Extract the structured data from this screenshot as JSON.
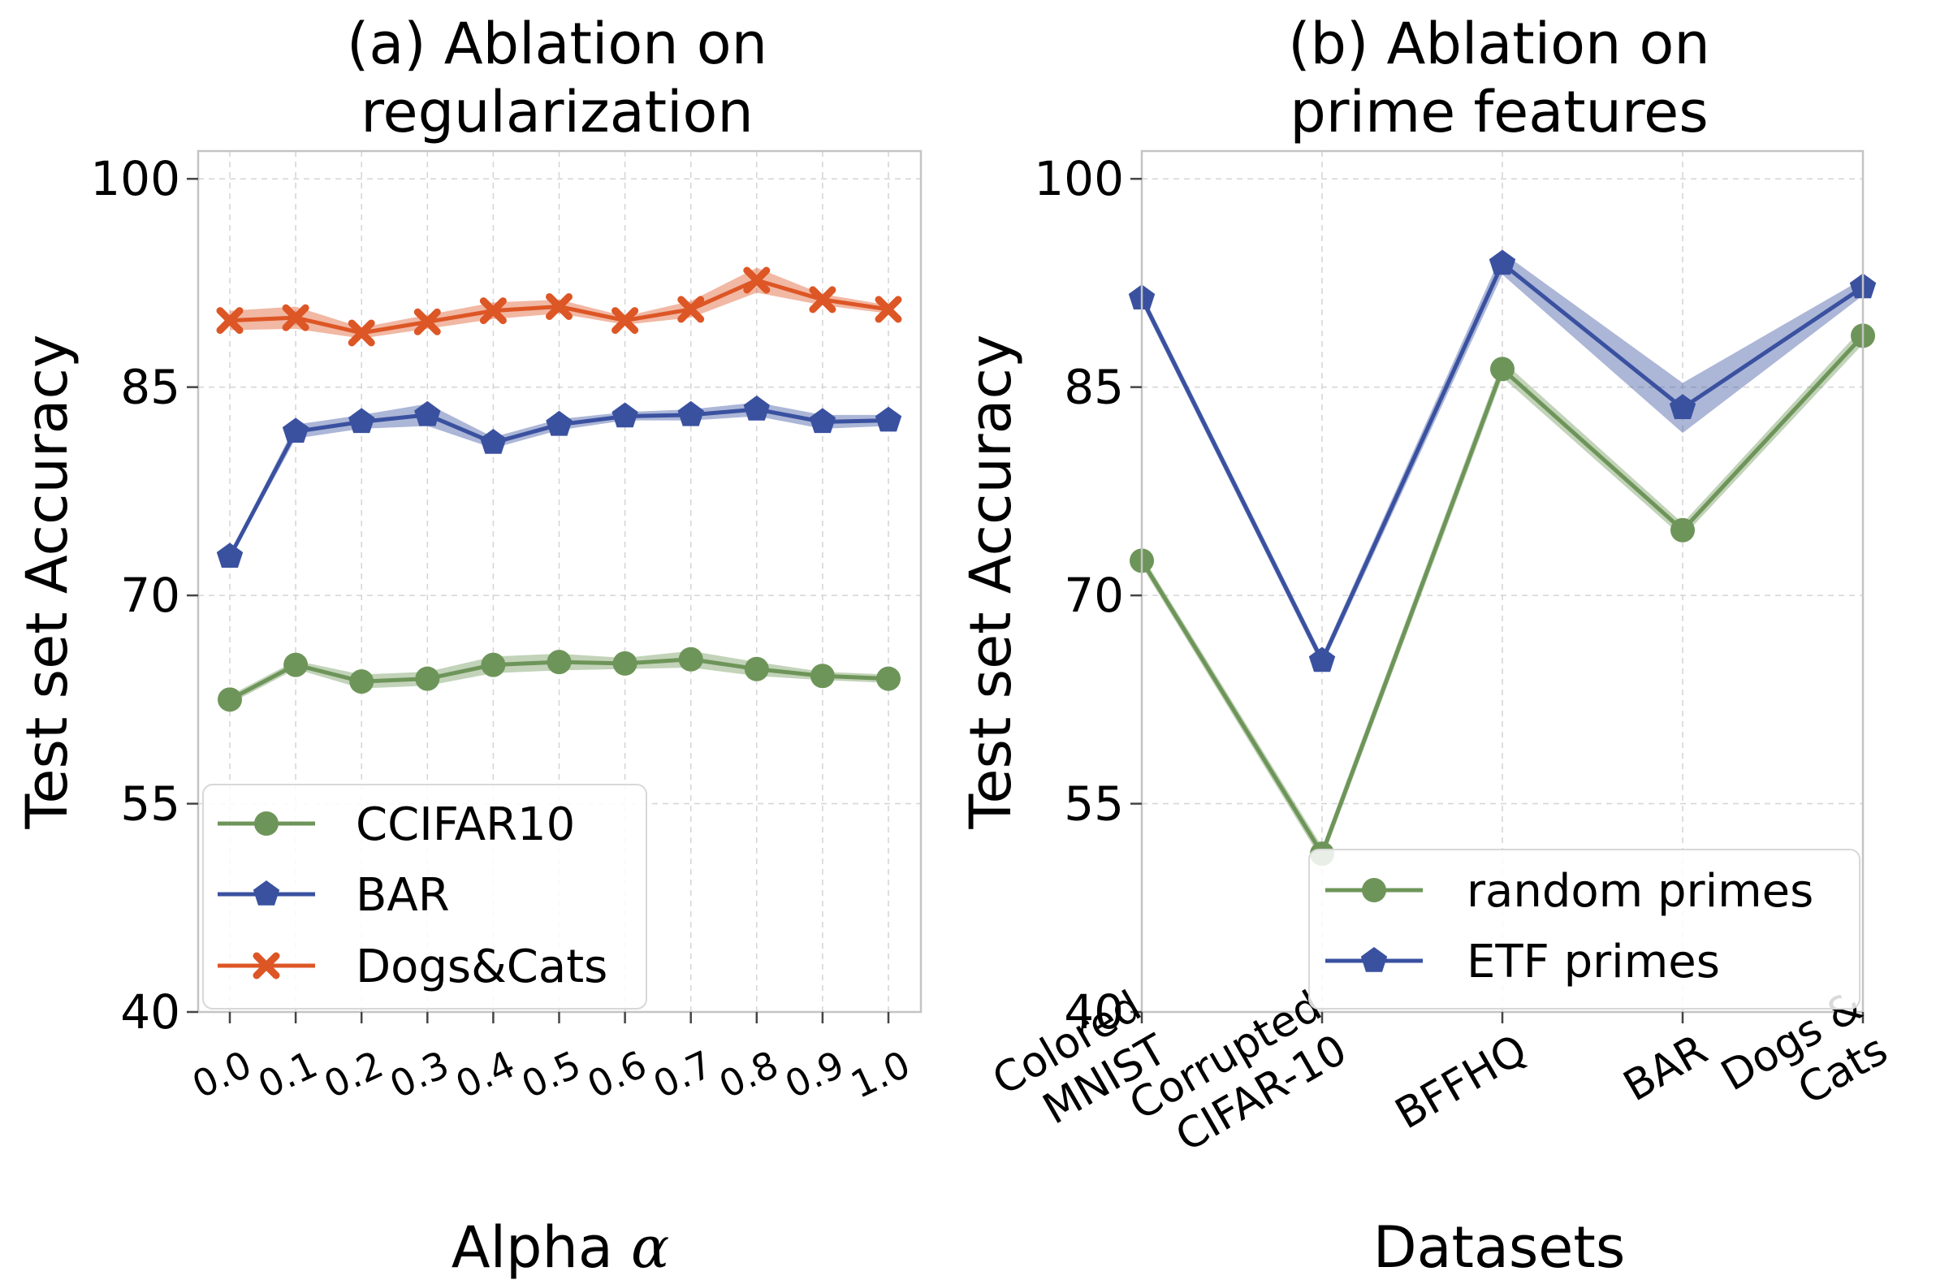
{
  "colors": {
    "green": "#6e9559",
    "blue": "#3a51a0",
    "orange": "#dd5625"
  },
  "chart_data": [
    {
      "type": "line",
      "title_lines": [
        "(a) Ablation on",
        "regularization"
      ],
      "xlabel": "Alpha",
      "xlabel_symbol": "α",
      "ylabel": "Test set Accuracy",
      "x": [
        "0.0",
        "0.1",
        "0.2",
        "0.3",
        "0.4",
        "0.5",
        "0.6",
        "0.7",
        "0.8",
        "0.9",
        "1.0"
      ],
      "yticks": [
        "40",
        "55",
        "70",
        "85",
        "100"
      ],
      "ytick_values": [
        40,
        55,
        70,
        85,
        100
      ],
      "ylim": [
        40,
        102
      ],
      "grid": true,
      "legend_position": "lower-left",
      "series": [
        {
          "name": "CCIFAR10",
          "color": "green",
          "marker": "circle",
          "values": [
            62.5,
            65.0,
            63.8,
            64.0,
            65.0,
            65.2,
            65.1,
            65.4,
            64.7,
            64.2,
            64.0
          ],
          "spread": [
            0.3,
            0.3,
            0.5,
            0.5,
            0.6,
            0.6,
            0.4,
            0.6,
            0.5,
            0.3,
            0.3
          ]
        },
        {
          "name": "BAR",
          "color": "blue",
          "marker": "pentagon",
          "values": [
            72.8,
            81.8,
            82.5,
            83.0,
            81.0,
            82.3,
            82.9,
            83.0,
            83.4,
            82.5,
            82.6
          ],
          "spread": [
            0.2,
            0.5,
            0.5,
            0.8,
            0.4,
            0.4,
            0.3,
            0.4,
            0.5,
            0.5,
            0.4
          ]
        },
        {
          "name": "Dogs&Cats",
          "color": "orange",
          "marker": "x",
          "values": [
            89.8,
            90.0,
            88.9,
            89.7,
            90.5,
            90.8,
            89.8,
            90.6,
            92.7,
            91.3,
            90.6
          ],
          "spread": [
            0.7,
            0.8,
            0.4,
            0.5,
            0.6,
            0.5,
            0.3,
            0.6,
            0.9,
            0.4,
            0.3
          ]
        }
      ]
    },
    {
      "type": "line",
      "title_lines": [
        "(b) Ablation on",
        "prime features"
      ],
      "xlabel": "Datasets",
      "ylabel": "Test set Accuracy",
      "x": [
        "Colored MNIST",
        "Corrupted CIFAR-10",
        "BFFHQ",
        "BAR",
        "Dogs & Cats"
      ],
      "x_tick_lines": [
        [
          "Colored",
          "MNIST"
        ],
        [
          "Corrupted",
          "CIFAR-10"
        ],
        [
          "BFFHQ"
        ],
        [
          "BAR"
        ],
        [
          "Dogs &",
          "Cats"
        ]
      ],
      "yticks": [
        "40",
        "55",
        "70",
        "85",
        "100"
      ],
      "ytick_values": [
        40,
        55,
        70,
        85,
        100
      ],
      "ylim": [
        40,
        102
      ],
      "grid": true,
      "legend_position": "lower-right",
      "series": [
        {
          "name": "random primes",
          "color": "green",
          "marker": "circle",
          "values": [
            72.5,
            51.4,
            86.3,
            74.7,
            88.7
          ],
          "spread": [
            0.4,
            0.5,
            0.6,
            0.5,
            0.6
          ]
        },
        {
          "name": "ETF primes",
          "color": "blue",
          "marker": "pentagon",
          "values": [
            91.4,
            65.3,
            93.9,
            83.5,
            92.2
          ],
          "spread": [
            0.4,
            0.4,
            0.8,
            1.8,
            0.6
          ]
        }
      ]
    }
  ]
}
